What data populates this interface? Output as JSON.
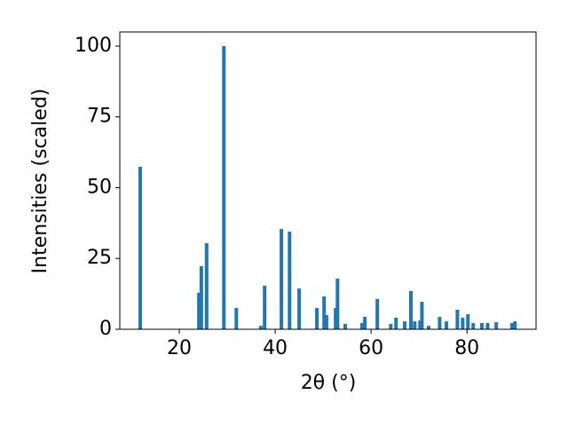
{
  "chart_data": {
    "type": "bar",
    "xlabel": "2θ (°)",
    "ylabel": "Intensities (scaled)",
    "color": "#1f77b4",
    "x": [
      11.85,
      24.1,
      24.6,
      25.7,
      29.3,
      31.9,
      37.0,
      37.8,
      41.3,
      43.0,
      45.0,
      48.7,
      50.2,
      50.7,
      52.6,
      53.0,
      54.6,
      58.1,
      58.7,
      61.3,
      64.1,
      65.2,
      67.0,
      68.3,
      69.1,
      70.2,
      70.6,
      72.0,
      74.3,
      75.7,
      78.0,
      79.1,
      80.2,
      81.3,
      83.1,
      84.3,
      86.1,
      89.4,
      90.0
    ],
    "values": [
      57.4,
      12.9,
      22.3,
      30.4,
      100,
      7.5,
      1.2,
      15.4,
      35.4,
      34.5,
      14.4,
      7.5,
      11.6,
      5.0,
      7.5,
      17.9,
      1.9,
      2.2,
      4.4,
      10.7,
      1.9,
      4.1,
      2.8,
      13.5,
      2.8,
      3.1,
      9.7,
      1.2,
      4.4,
      2.8,
      6.9,
      4.1,
      5.3,
      2.2,
      2.2,
      2.2,
      2.5,
      2.2,
      2.8
    ],
    "xlim": [
      7.6,
      94.4
    ],
    "xticks": [
      20,
      40,
      60,
      80
    ],
    "ylim": [
      0,
      105
    ],
    "yticks": [
      0,
      25,
      50,
      75,
      100
    ],
    "grid": false
  }
}
